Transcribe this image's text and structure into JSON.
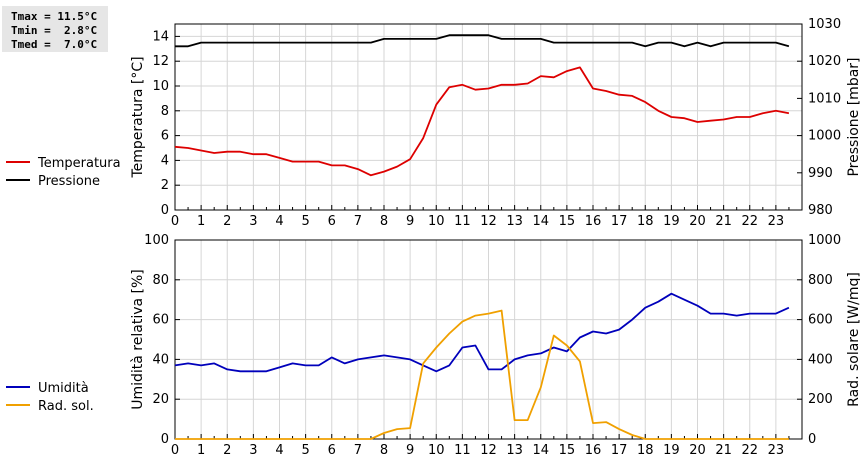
{
  "stats": {
    "tmax": "Tmax = 11.5°C",
    "tmin": "Tmin =  2.8°C",
    "tmed": "Tmed =  7.0°C"
  },
  "chart_data": [
    {
      "type": "line",
      "xlabel": "",
      "xlim": [
        0,
        24
      ],
      "xticks": [
        "0",
        "1",
        "2",
        "3",
        "4",
        "5",
        "6",
        "7",
        "8",
        "9",
        "10",
        "11",
        "12",
        "13",
        "14",
        "15",
        "16",
        "17",
        "18",
        "19",
        "20",
        "21",
        "22",
        "23"
      ],
      "ylabel": "Temperatura [°C]",
      "ylim": [
        0,
        15
      ],
      "yticks": [
        0,
        2,
        4,
        6,
        8,
        10,
        12,
        14
      ],
      "y2label": "Pressione [mbar]",
      "y2lim": [
        980,
        1030
      ],
      "y2ticks": [
        980,
        990,
        1000,
        1010,
        1020,
        1030
      ],
      "grid": true,
      "legend_position": "left",
      "series": [
        {
          "name": "Temperatura",
          "axis": "left",
          "color": "#dd0000",
          "x": [
            0,
            0.5,
            1,
            1.5,
            2,
            2.5,
            3,
            3.5,
            4,
            4.5,
            5,
            5.5,
            6,
            6.5,
            7,
            7.5,
            8,
            8.5,
            9,
            9.5,
            10,
            10.5,
            11,
            11.5,
            12,
            12.5,
            13,
            13.5,
            14,
            14.5,
            15,
            15.5,
            16,
            16.5,
            17,
            17.5,
            18,
            18.5,
            19,
            19.5,
            20,
            20.5,
            21,
            21.5,
            22,
            22.5,
            23,
            23.5
          ],
          "values": [
            5.1,
            5.0,
            4.8,
            4.6,
            4.7,
            4.7,
            4.5,
            4.5,
            4.2,
            3.9,
            3.9,
            3.9,
            3.6,
            3.6,
            3.3,
            2.8,
            3.1,
            3.5,
            4.1,
            5.8,
            8.5,
            9.9,
            10.1,
            9.7,
            9.8,
            10.1,
            10.1,
            10.2,
            10.8,
            10.7,
            11.2,
            11.5,
            9.8,
            9.6,
            9.3,
            9.2,
            8.7,
            8.0,
            7.5,
            7.4,
            7.1,
            7.2,
            7.3,
            7.5,
            7.5,
            7.8,
            8.0,
            7.8
          ]
        },
        {
          "name": "Pressione",
          "axis": "right",
          "color": "#000000",
          "x": [
            0,
            0.5,
            1,
            1.5,
            2,
            2.5,
            3,
            3.5,
            4,
            4.5,
            5,
            5.5,
            6,
            6.5,
            7,
            7.5,
            8,
            8.5,
            9,
            9.5,
            10,
            10.5,
            11,
            11.5,
            12,
            12.5,
            13,
            13.5,
            14,
            14.5,
            15,
            15.5,
            16,
            16.5,
            17,
            17.5,
            18,
            18.5,
            19,
            19.5,
            20,
            20.5,
            21,
            21.5,
            22,
            22.5,
            23,
            23.5
          ],
          "values": [
            1024,
            1024,
            1025,
            1025,
            1025,
            1025,
            1025,
            1025,
            1025,
            1025,
            1025,
            1025,
            1025,
            1025,
            1025,
            1025,
            1026,
            1026,
            1026,
            1026,
            1026,
            1027,
            1027,
            1027,
            1027,
            1026,
            1026,
            1026,
            1026,
            1025,
            1025,
            1025,
            1025,
            1025,
            1025,
            1025,
            1024,
            1025,
            1025,
            1024,
            1025,
            1024,
            1025,
            1025,
            1025,
            1025,
            1025,
            1024
          ]
        }
      ]
    },
    {
      "type": "line",
      "xlabel": "",
      "xlim": [
        0,
        24
      ],
      "xticks": [
        "0",
        "1",
        "2",
        "3",
        "4",
        "5",
        "6",
        "7",
        "8",
        "9",
        "10",
        "11",
        "12",
        "13",
        "14",
        "15",
        "16",
        "17",
        "18",
        "19",
        "20",
        "21",
        "22",
        "23"
      ],
      "ylabel": "Umidità relativa [%]",
      "ylim": [
        0,
        100
      ],
      "yticks": [
        0,
        20,
        40,
        60,
        80,
        100
      ],
      "y2label": "Rad. solare [W/mq]",
      "y2lim": [
        0,
        1000
      ],
      "y2ticks": [
        0,
        200,
        400,
        600,
        800,
        1000
      ],
      "grid": true,
      "legend_position": "left",
      "series": [
        {
          "name": "Umidità",
          "axis": "left",
          "color": "#0000bb",
          "x": [
            0,
            0.5,
            1,
            1.5,
            2,
            2.5,
            3,
            3.5,
            4,
            4.5,
            5,
            5.5,
            6,
            6.5,
            7,
            7.5,
            8,
            8.5,
            9,
            9.5,
            10,
            10.5,
            11,
            11.5,
            12,
            12.5,
            13,
            13.5,
            14,
            14.5,
            15,
            15.5,
            16,
            16.5,
            17,
            17.5,
            18,
            18.5,
            19,
            19.5,
            20,
            20.5,
            21,
            21.5,
            22,
            22.5,
            23,
            23.5
          ],
          "values": [
            37,
            38,
            37,
            38,
            35,
            34,
            34,
            34,
            36,
            38,
            37,
            37,
            41,
            38,
            40,
            41,
            42,
            41,
            40,
            37,
            34,
            37,
            46,
            47,
            35,
            35,
            40,
            42,
            43,
            46,
            44,
            51,
            54,
            53,
            55,
            60,
            66,
            69,
            73,
            70,
            67,
            63,
            63,
            62,
            63,
            63,
            63,
            66
          ]
        },
        {
          "name": "Rad. sol.",
          "axis": "right",
          "color": "#f0a000",
          "x": [
            0,
            1,
            2,
            3,
            4,
            5,
            6,
            7,
            7.5,
            8,
            8.5,
            9,
            9.5,
            10,
            10.5,
            11,
            11.5,
            12,
            12.5,
            13,
            13.5,
            14,
            14.5,
            15,
            15.5,
            16,
            16.5,
            17,
            17.5,
            18,
            19,
            20,
            21,
            22,
            23,
            23.5
          ],
          "values": [
            0,
            0,
            0,
            0,
            0,
            0,
            0,
            0,
            0,
            30,
            50,
            55,
            380,
            460,
            530,
            590,
            620,
            630,
            645,
            95,
            95,
            260,
            520,
            470,
            390,
            80,
            85,
            50,
            20,
            0,
            0,
            0,
            0,
            0,
            0,
            0
          ]
        }
      ]
    }
  ]
}
